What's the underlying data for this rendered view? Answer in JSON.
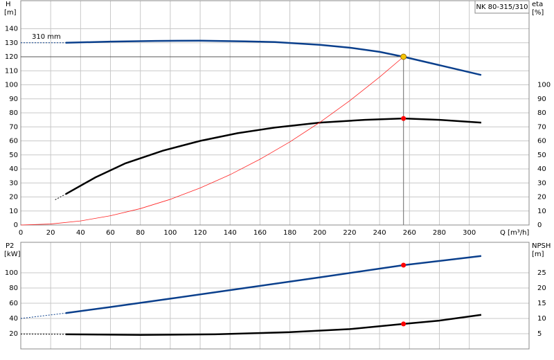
{
  "chart_data": [
    {
      "type": "line",
      "title": "NK 80-315/310",
      "ylabel": "H",
      "yunit": "[m]",
      "y2label": "eta",
      "y2unit": "[%]",
      "xlabel": "Q [m³/h]",
      "annotation": "310 mm",
      "xlim": [
        0,
        340
      ],
      "xticks": [
        0,
        20,
        40,
        60,
        80,
        100,
        120,
        140,
        160,
        180,
        200,
        220,
        240,
        260,
        280,
        300
      ],
      "ylim": [
        0,
        160
      ],
      "yticks": [
        0,
        10,
        20,
        30,
        40,
        50,
        60,
        70,
        80,
        90,
        100,
        110,
        120,
        130,
        140
      ],
      "y2lim": [
        0,
        160
      ],
      "y2ticks": [
        0,
        10,
        20,
        30,
        40,
        50,
        60,
        70,
        80,
        90,
        100
      ],
      "grid": true,
      "series": [
        {
          "color": "#0a3f8c",
          "dash": true,
          "width": 1,
          "x": [
            0,
            30
          ],
          "values": [
            130,
            130
          ]
        },
        {
          "color": "#0a3f8c",
          "width": 2.5,
          "x": [
            30,
            60,
            90,
            120,
            150,
            170,
            200,
            220,
            240,
            256,
            280,
            308
          ],
          "values": [
            130,
            130.8,
            131.3,
            131.5,
            131,
            130.5,
            128.5,
            126.5,
            123.5,
            120,
            114,
            107
          ]
        },
        {
          "color": "#000000",
          "dash": true,
          "width": 1,
          "axis": "y2",
          "x": [
            23,
            30
          ],
          "values": [
            18,
            22
          ]
        },
        {
          "color": "#000000",
          "width": 2.5,
          "axis": "y2",
          "x": [
            30,
            50,
            70,
            95,
            120,
            145,
            170,
            200,
            230,
            256,
            280,
            308
          ],
          "values": [
            22,
            34,
            44,
            53,
            60,
            65.5,
            69.5,
            73,
            75,
            76,
            75,
            73
          ]
        },
        {
          "color": "#ff2020",
          "width": 0.8,
          "x": [
            0,
            20,
            40,
            60,
            80,
            100,
            120,
            140,
            160,
            180,
            200,
            220,
            240,
            256
          ],
          "values": [
            0,
            0.7,
            2.9,
            6.6,
            11.7,
            18.3,
            26.4,
            35.9,
            46.9,
            59.3,
            73.2,
            88.6,
            105.5,
            120
          ]
        }
      ],
      "markers": [
        {
          "x": 256,
          "y": 120,
          "color": "#f5c400",
          "guide": true
        },
        {
          "x": 256,
          "y": 76,
          "axis": "y2",
          "color": "#ff0000"
        }
      ]
    },
    {
      "type": "line",
      "ylabel": "P2",
      "yunit": "[kW]",
      "y2label": "NPSH",
      "y2unit": "[m]",
      "xlim": [
        0,
        340
      ],
      "ylim": [
        0,
        140
      ],
      "yticks": [
        20,
        40,
        60,
        80,
        100
      ],
      "y2lim": [
        0,
        35
      ],
      "y2ticks": [
        5,
        10,
        15,
        20,
        25
      ],
      "grid": true,
      "series": [
        {
          "color": "#0a3f8c",
          "dash": true,
          "width": 1,
          "x": [
            0,
            30
          ],
          "values": [
            40,
            47
          ]
        },
        {
          "color": "#0a3f8c",
          "width": 2.5,
          "x": [
            30,
            60,
            100,
            150,
            200,
            256,
            308
          ],
          "values": [
            47,
            55,
            66,
            80,
            94,
            110,
            122
          ]
        },
        {
          "color": "#000000",
          "dash": true,
          "width": 1,
          "axis": "y2",
          "x": [
            0,
            30
          ],
          "values": [
            4.9,
            4.8
          ]
        },
        {
          "color": "#000000",
          "width": 2.5,
          "axis": "y2",
          "x": [
            30,
            80,
            130,
            180,
            220,
            256,
            280,
            308
          ],
          "values": [
            4.8,
            4.6,
            4.8,
            5.5,
            6.5,
            8.2,
            9.3,
            11.2
          ]
        }
      ],
      "markers": [
        {
          "x": 256,
          "y": 110,
          "color": "#ff0000"
        },
        {
          "x": 256,
          "y": 8.2,
          "axis": "y2",
          "color": "#ff0000"
        }
      ]
    }
  ]
}
